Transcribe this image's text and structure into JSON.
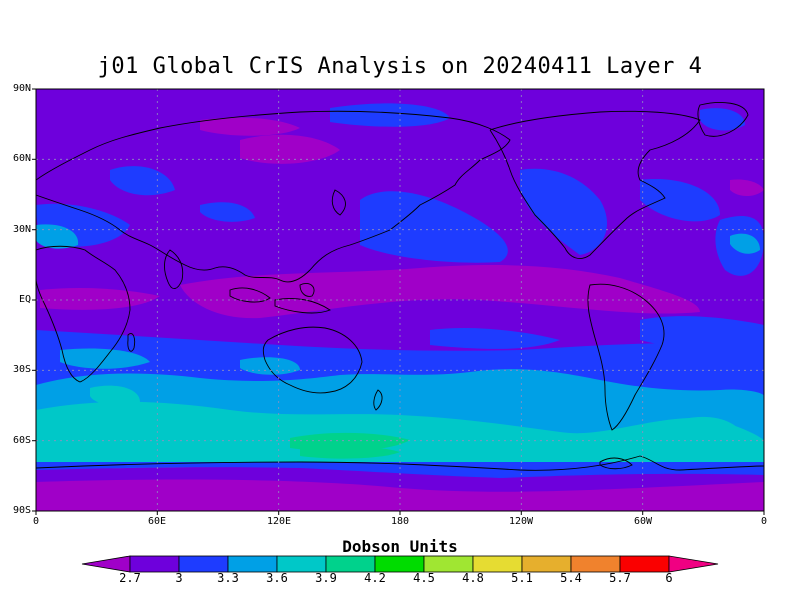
{
  "title": "j01 Global CrIS Analysis on 20240411 Layer 4",
  "lat_labels": [
    "90N",
    "60N",
    "30N",
    "EQ",
    "30S",
    "60S",
    "90S"
  ],
  "lon_labels": [
    "0",
    "60E",
    "120E",
    "180",
    "120W",
    "60W",
    "0"
  ],
  "colorbar": {
    "title": "Dobson Units",
    "ticks": [
      "2.7",
      "3",
      "3.3",
      "3.6",
      "3.9",
      "4.2",
      "4.5",
      "4.8",
      "5.1",
      "5.4",
      "5.7",
      "6"
    ],
    "colors": [
      "#a000c8",
      "#6e00dc",
      "#1e3cff",
      "#00a0e6",
      "#00c8c8",
      "#00d28c",
      "#00dc00",
      "#a0e632",
      "#e6dc32",
      "#e6af2d",
      "#f0822d",
      "#fa0000",
      "#f00082"
    ]
  },
  "legend_colors": {
    "below": "#a000c8",
    "above": "#f00082"
  }
}
